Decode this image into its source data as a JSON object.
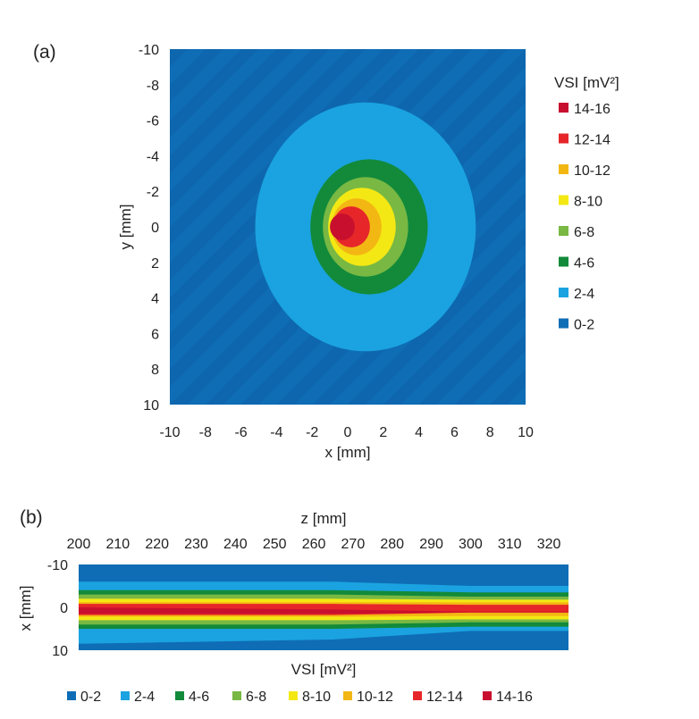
{
  "colors": {
    "0-2": "#0f6db5",
    "2-4": "#1aa3e0",
    "4-6": "#128a3a",
    "6-8": "#78b843",
    "8-10": "#f4e814",
    "10-12": "#f3b713",
    "12-14": "#e62629",
    "14-16": "#c8102e"
  },
  "chart_data": [
    {
      "panel_label": "(a)",
      "type": "heatmap",
      "title": "",
      "xlabel": "x [mm]",
      "ylabel": "y [mm]",
      "x_ticks": [
        "-10",
        "-8",
        "-6",
        "-4",
        "-2",
        "0",
        "2",
        "4",
        "6",
        "8",
        "10"
      ],
      "y_ticks": [
        "-10",
        "-8",
        "-6",
        "-4",
        "-2",
        "0",
        "2",
        "4",
        "6",
        "8",
        "10"
      ],
      "xlim": [
        -10,
        10
      ],
      "ylim": [
        -10,
        10
      ],
      "y_axis_inverted": true,
      "legend_title": "VSI [mV²]",
      "legend_position": "right",
      "legend": [
        "14-16",
        "12-14",
        "10-12",
        "8-10",
        "6-8",
        "4-6",
        "2-4",
        "0-2"
      ],
      "contours": [
        {
          "range": "2-4",
          "center": [
            1.0,
            0.0
          ],
          "rx": 6.2,
          "ry": 7.0
        },
        {
          "range": "4-6",
          "center": [
            1.2,
            0.0
          ],
          "rx": 3.3,
          "ry": 3.8
        },
        {
          "range": "6-8",
          "center": [
            1.0,
            0.0
          ],
          "rx": 2.4,
          "ry": 2.8
        },
        {
          "range": "8-10",
          "center": [
            0.8,
            0.0
          ],
          "rx": 1.9,
          "ry": 2.2
        },
        {
          "range": "10-12",
          "center": [
            0.5,
            0.0
          ],
          "rx": 1.4,
          "ry": 1.6
        },
        {
          "range": "12-14",
          "center": [
            0.2,
            0.0
          ],
          "rx": 1.05,
          "ry": 1.15
        },
        {
          "range": "14-16",
          "center": [
            -0.3,
            0.0
          ],
          "rx": 0.7,
          "ry": 0.75
        }
      ]
    },
    {
      "panel_label": "(b)",
      "type": "heatmap",
      "title": "",
      "xlabel": "z [mm]",
      "ylabel": "x [mm]",
      "x_ticks": [
        "200",
        "210",
        "220",
        "230",
        "240",
        "250",
        "260",
        "270",
        "280",
        "290",
        "300",
        "310",
        "320"
      ],
      "y_ticks": [
        "-10",
        "0",
        "10"
      ],
      "xlim": [
        200,
        325
      ],
      "ylim": [
        -10,
        10
      ],
      "y_axis_inverted": true,
      "legend_title": "VSI [mV²]",
      "legend_position": "bottom",
      "legend": [
        "0-2",
        "2-4",
        "4-6",
        "6-8",
        "8-10",
        "10-12",
        "12-14",
        "14-16"
      ],
      "bands": [
        {
          "range": "2-4",
          "top": [
            -6.0,
            -6.0,
            -5.0
          ],
          "bottom": [
            8.5,
            7.5,
            5.5
          ]
        },
        {
          "range": "4-6",
          "top": [
            -4.0,
            -4.0,
            -3.5
          ],
          "bottom": [
            5.0,
            5.0,
            4.5
          ]
        },
        {
          "range": "6-8",
          "top": [
            -3.0,
            -3.0,
            -2.5
          ],
          "bottom": [
            4.0,
            4.0,
            3.5
          ]
        },
        {
          "range": "8-10",
          "top": [
            -2.0,
            -2.0,
            -1.8
          ],
          "bottom": [
            3.0,
            3.0,
            2.8
          ]
        },
        {
          "range": "10-12",
          "top": [
            -1.2,
            -1.2,
            -1.2
          ],
          "bottom": [
            2.2,
            2.2,
            2.0
          ]
        },
        {
          "range": "12-14",
          "top": [
            -0.8,
            -0.8,
            -0.6
          ],
          "bottom": [
            1.8,
            1.8,
            1.2
          ]
        },
        {
          "range": "14-16",
          "top": [
            0.0,
            0.5,
            1.0
          ],
          "bottom": [
            1.5,
            1.5,
            1.2
          ]
        }
      ],
      "band_z": [
        200,
        265,
        300
      ]
    }
  ]
}
